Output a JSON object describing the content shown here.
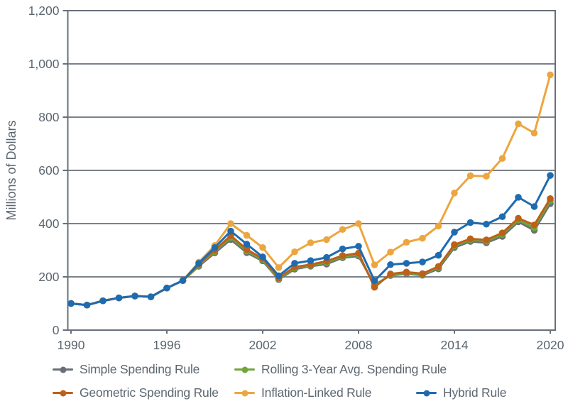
{
  "chart_data": {
    "type": "line",
    "title": "",
    "ylabel": "Millions of Dollars",
    "xlabel": "",
    "ylim": [
      0,
      1200
    ],
    "xlim": [
      1990,
      2020
    ],
    "grid": "horizontal",
    "legend_position": "bottom",
    "axis_color": "#67707A",
    "tick_label_color": "#5C666F",
    "y_ticks": [
      {
        "value": 0,
        "label": "0"
      },
      {
        "value": 200,
        "label": "200"
      },
      {
        "value": 400,
        "label": "400"
      },
      {
        "value": 600,
        "label": "600"
      },
      {
        "value": 800,
        "label": "800"
      },
      {
        "value": 1000,
        "label": "1,000"
      },
      {
        "value": 1200,
        "label": "1,200"
      }
    ],
    "x_ticks": [
      {
        "value": 1990,
        "label": "1990"
      },
      {
        "value": 1996,
        "label": "1996"
      },
      {
        "value": 2002,
        "label": "2002"
      },
      {
        "value": 2008,
        "label": "2008"
      },
      {
        "value": 2014,
        "label": "2014"
      },
      {
        "value": 2020,
        "label": "2020"
      }
    ],
    "x": [
      1990,
      1991,
      1992,
      1993,
      1994,
      1995,
      1996,
      1997,
      1998,
      1999,
      2000,
      2001,
      2002,
      2003,
      2004,
      2005,
      2006,
      2007,
      2008,
      2009,
      2010,
      2011,
      2012,
      2013,
      2014,
      2015,
      2016,
      2017,
      2018,
      2019,
      2020
    ],
    "series": [
      {
        "name": "Simple Spending Rule",
        "color": "#6A6F75",
        "values": [
          100,
          94,
          110,
          121,
          128,
          125,
          158,
          186,
          240,
          290,
          340,
          291,
          260,
          190,
          229,
          240,
          248,
          272,
          278,
          170,
          205,
          212,
          206,
          230,
          310,
          333,
          328,
          352,
          407,
          375,
          475
        ]
      },
      {
        "name": "Rolling 3-Year Avg. Spending Rule",
        "color": "#72A53B",
        "values": [
          100,
          94,
          110,
          121,
          128,
          125,
          158,
          186,
          243,
          295,
          348,
          297,
          264,
          193,
          233,
          243,
          254,
          276,
          283,
          166,
          208,
          215,
          209,
          235,
          316,
          339,
          334,
          359,
          414,
          384,
          486
        ]
      },
      {
        "name": "Geometric Spending Rule",
        "color": "#BD6018",
        "values": [
          100,
          94,
          110,
          121,
          128,
          125,
          158,
          186,
          247,
          300,
          355,
          303,
          269,
          196,
          237,
          246,
          259,
          280,
          289,
          161,
          211,
          218,
          212,
          239,
          321,
          343,
          339,
          365,
          420,
          395,
          494
        ]
      },
      {
        "name": "Inflation-Linked Rule",
        "color": "#ECA63F",
        "values": [
          100,
          94,
          110,
          121,
          128,
          125,
          158,
          186,
          255,
          318,
          400,
          356,
          310,
          235,
          294,
          328,
          340,
          378,
          400,
          245,
          293,
          330,
          345,
          391,
          515,
          580,
          578,
          645,
          775,
          740,
          959
        ]
      },
      {
        "name": "Hybrid Rule",
        "color": "#1F6BB0",
        "values": [
          100,
          94,
          110,
          121,
          128,
          125,
          158,
          186,
          251,
          310,
          372,
          323,
          275,
          204,
          251,
          261,
          273,
          305,
          315,
          185,
          246,
          251,
          256,
          281,
          368,
          404,
          398,
          426,
          499,
          464,
          581
        ]
      }
    ]
  },
  "legend": {
    "rows": [
      [
        "Simple Spending Rule",
        "Rolling 3-Year Avg. Spending Rule"
      ],
      [
        "Geometric Spending Rule",
        "Inflation-Linked Rule",
        "Hybrid Rule"
      ]
    ]
  }
}
